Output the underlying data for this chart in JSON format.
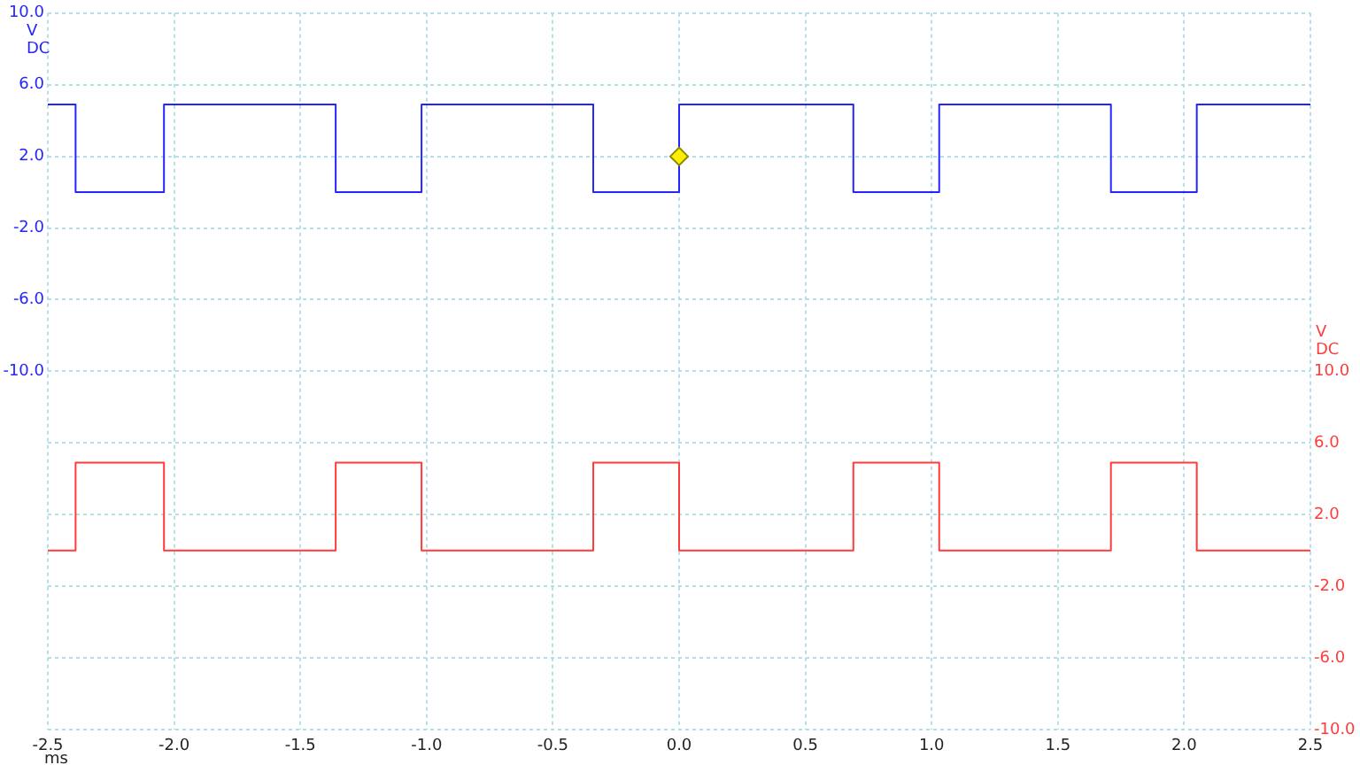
{
  "chart_data": {
    "type": "step",
    "xlabel": "ms",
    "ylabel": "V DC",
    "y2label": "V DC",
    "xlim": [
      -2.5,
      2.5
    ],
    "xticks": [
      {
        "value": -2.5,
        "label": "-2.5"
      },
      {
        "value": -2,
        "label": "-2.0"
      },
      {
        "value": -1.5,
        "label": "-1.5"
      },
      {
        "value": -1,
        "label": "-1.0"
      },
      {
        "value": -0.5,
        "label": "-0.5"
      },
      {
        "value": 0,
        "label": "0.0"
      },
      {
        "value": 0.5,
        "label": "0.5"
      },
      {
        "value": 1,
        "label": "1.0"
      },
      {
        "value": 1.5,
        "label": "1.5"
      },
      {
        "value": 2,
        "label": "2.0"
      },
      {
        "value": 2.5,
        "label": "2.5"
      }
    ],
    "ylim": [
      -30,
      10
    ],
    "yticks": [
      {
        "value": 10,
        "label": "10.0"
      },
      {
        "value": 6,
        "label": "6.0"
      },
      {
        "value": 2,
        "label": "2.0"
      },
      {
        "value": -2,
        "label": "-2.0"
      },
      {
        "value": -6,
        "label": "-6.0"
      },
      {
        "value": -10,
        "label": "-10.0"
      },
      {
        "value": -14,
        "label": null
      },
      {
        "value": -18,
        "label": null
      },
      {
        "value": -22,
        "label": null
      },
      {
        "value": -26,
        "label": null
      },
      {
        "value": -30,
        "label": null
      }
    ],
    "y2lim": [
      -10,
      30
    ],
    "y2ticks": [
      {
        "value": 30,
        "label": null
      },
      {
        "value": 26,
        "label": null
      },
      {
        "value": 22,
        "label": null
      },
      {
        "value": 18,
        "label": null
      },
      {
        "value": 14,
        "label": null
      },
      {
        "value": 10,
        "label": "10.0"
      },
      {
        "value": 6,
        "label": "6.0"
      },
      {
        "value": 2,
        "label": "2.0"
      },
      {
        "value": -2,
        "label": "-2.0"
      },
      {
        "value": -6,
        "label": "-6.0"
      },
      {
        "value": -10,
        "label": "-10.0"
      }
    ],
    "grid": true,
    "legend": false,
    "marker": "none",
    "line_style": "solid",
    "series": [
      {
        "color": "#2424ff",
        "x": [
          -2.5,
          -2.39,
          -2.04,
          -1.36,
          -1.02,
          -0.34,
          0.0,
          0.69,
          1.03,
          1.71,
          2.05,
          2.5
        ],
        "values": [
          4.9,
          0,
          4.9,
          0,
          4.9,
          0,
          4.9,
          0,
          4.9,
          0,
          4.9,
          4.9
        ]
      },
      {
        "color": "#ff3b3b",
        "axis": "y2",
        "x": [
          -2.5,
          -2.39,
          -2.04,
          -1.36,
          -1.02,
          -0.34,
          0.0,
          0.69,
          1.03,
          1.71,
          2.05,
          2.5
        ],
        "values": [
          0,
          4.9,
          0,
          4.9,
          0,
          4.9,
          0,
          4.9,
          0,
          4.9,
          0,
          0
        ]
      },
      {
        "type": "scatter",
        "color": "#ffee00",
        "marker": "diamond",
        "x": [
          0
        ],
        "values": [
          2
        ]
      }
    ]
  }
}
